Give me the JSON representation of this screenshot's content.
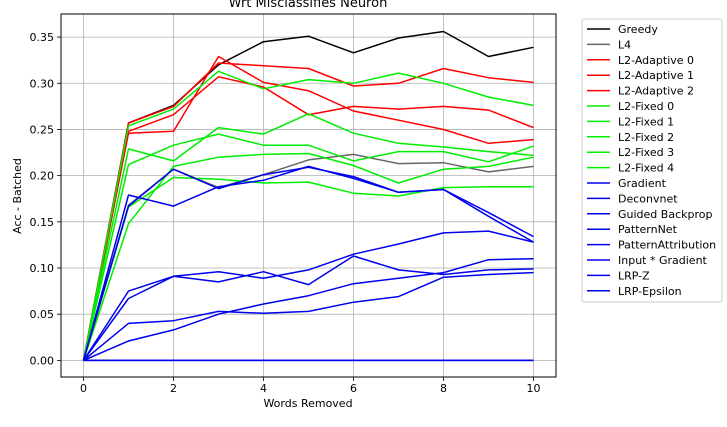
{
  "chart_data": {
    "type": "line",
    "title": "Wrt Misclassifies Neuron",
    "xlabel": "Words Removed",
    "ylabel": "Acc - Batched",
    "xlim": [
      -0.5,
      10.5
    ],
    "ylim": [
      -0.018,
      0.375
    ],
    "xticks": [
      0,
      2,
      4,
      6,
      8,
      10
    ],
    "yticks": [
      0.0,
      0.05,
      0.1,
      0.15,
      0.2,
      0.25,
      0.3,
      0.35
    ],
    "ytick_labels": [
      "0.00",
      "0.05",
      "0.10",
      "0.15",
      "0.20",
      "0.25",
      "0.30",
      "0.35"
    ],
    "grid": true,
    "legend_position": "outside-right",
    "x": [
      0,
      1,
      2,
      3,
      4,
      5,
      6,
      7,
      8,
      9,
      10
    ],
    "series": [
      {
        "name": "Greedy",
        "color": "#000000",
        "values": [
          0.0,
          0.257,
          0.276,
          0.32,
          0.345,
          0.351,
          0.333,
          0.349,
          0.356,
          0.329,
          0.339
        ]
      },
      {
        "name": "L4",
        "color": "#666666",
        "values": [
          0.0,
          0.168,
          0.207,
          0.187,
          0.201,
          0.217,
          0.223,
          0.213,
          0.214,
          0.204,
          0.21
        ]
      },
      {
        "name": "L2-Adaptive 0",
        "color": "#ff0000",
        "values": [
          0.0,
          0.257,
          0.275,
          0.322,
          0.319,
          0.316,
          0.297,
          0.3,
          0.316,
          0.306,
          0.301
        ]
      },
      {
        "name": "L2-Adaptive 1",
        "color": "#ff0000",
        "values": [
          0.0,
          0.246,
          0.248,
          0.329,
          0.301,
          0.292,
          0.27,
          0.26,
          0.25,
          0.235,
          0.239
        ]
      },
      {
        "name": "L2-Adaptive 2",
        "color": "#ff0000",
        "values": [
          0.0,
          0.248,
          0.266,
          0.307,
          0.296,
          0.266,
          0.275,
          0.272,
          0.275,
          0.271,
          0.252
        ]
      },
      {
        "name": "L2-Fixed 0",
        "color": "#00ee00",
        "values": [
          0.0,
          0.254,
          0.272,
          0.313,
          0.294,
          0.304,
          0.3,
          0.311,
          0.3,
          0.285,
          0.276
        ]
      },
      {
        "name": "L2-Fixed 1",
        "color": "#00ee00",
        "values": [
          0.0,
          0.229,
          0.216,
          0.252,
          0.245,
          0.267,
          0.246,
          0.235,
          0.231,
          0.226,
          0.222
        ]
      },
      {
        "name": "L2-Fixed 2",
        "color": "#00ee00",
        "values": [
          0.0,
          0.212,
          0.233,
          0.245,
          0.233,
          0.233,
          0.216,
          0.226,
          0.226,
          0.215,
          0.232
        ]
      },
      {
        "name": "L2-Fixed 3",
        "color": "#00ee00",
        "values": [
          0.0,
          0.148,
          0.21,
          0.22,
          0.223,
          0.224,
          0.211,
          0.192,
          0.207,
          0.21,
          0.22
        ]
      },
      {
        "name": "L2-Fixed 4",
        "color": "#00ee00",
        "values": [
          0.0,
          0.166,
          0.198,
          0.196,
          0.192,
          0.193,
          0.181,
          0.178,
          0.187,
          0.188,
          0.188
        ]
      },
      {
        "name": "Gradient",
        "color": "#0000ee",
        "values": [
          0.0,
          0.0,
          0.0,
          0.0,
          0.0,
          0.0,
          0.0,
          0.0,
          0.0,
          0.0,
          0.0
        ]
      },
      {
        "name": "Deconvnet",
        "color": "#0000ee",
        "values": [
          0.0,
          0.179,
          0.167,
          0.188,
          0.195,
          0.21,
          0.197,
          0.182,
          0.185,
          0.16,
          0.134
        ]
      },
      {
        "name": "Guided Backprop",
        "color": "#0000ee",
        "values": [
          0.0,
          0.167,
          0.207,
          0.186,
          0.201,
          0.209,
          0.199,
          0.182,
          0.185,
          0.156,
          0.128
        ]
      },
      {
        "name": "PatternNet",
        "color": "#0000ee",
        "values": [
          0.0,
          0.075,
          0.091,
          0.096,
          0.089,
          0.098,
          0.115,
          0.126,
          0.138,
          0.14,
          0.128
        ]
      },
      {
        "name": "PatternAttribution",
        "color": "#0000ee",
        "values": [
          0.0,
          0.067,
          0.091,
          0.085,
          0.096,
          0.082,
          0.113,
          0.098,
          0.093,
          0.098,
          0.099
        ]
      },
      {
        "name": "Input * Gradient",
        "color": "#0000ee",
        "values": [
          0.0,
          0.04,
          0.043,
          0.053,
          0.051,
          0.053,
          0.063,
          0.069,
          0.09,
          0.093,
          0.095
        ]
      },
      {
        "name": "LRP-Z",
        "color": "#0000ee",
        "values": [
          0.0,
          0.021,
          0.033,
          0.05,
          0.061,
          0.07,
          0.083,
          0.089,
          0.095,
          0.109,
          0.11
        ]
      },
      {
        "name": "LRP-Epsilon",
        "color": "#0000ee",
        "values": [
          0.0,
          0.0,
          0.0,
          0.0,
          0.0,
          0.0,
          0.0,
          0.0,
          0.0,
          0.0,
          0.0
        ]
      }
    ]
  }
}
